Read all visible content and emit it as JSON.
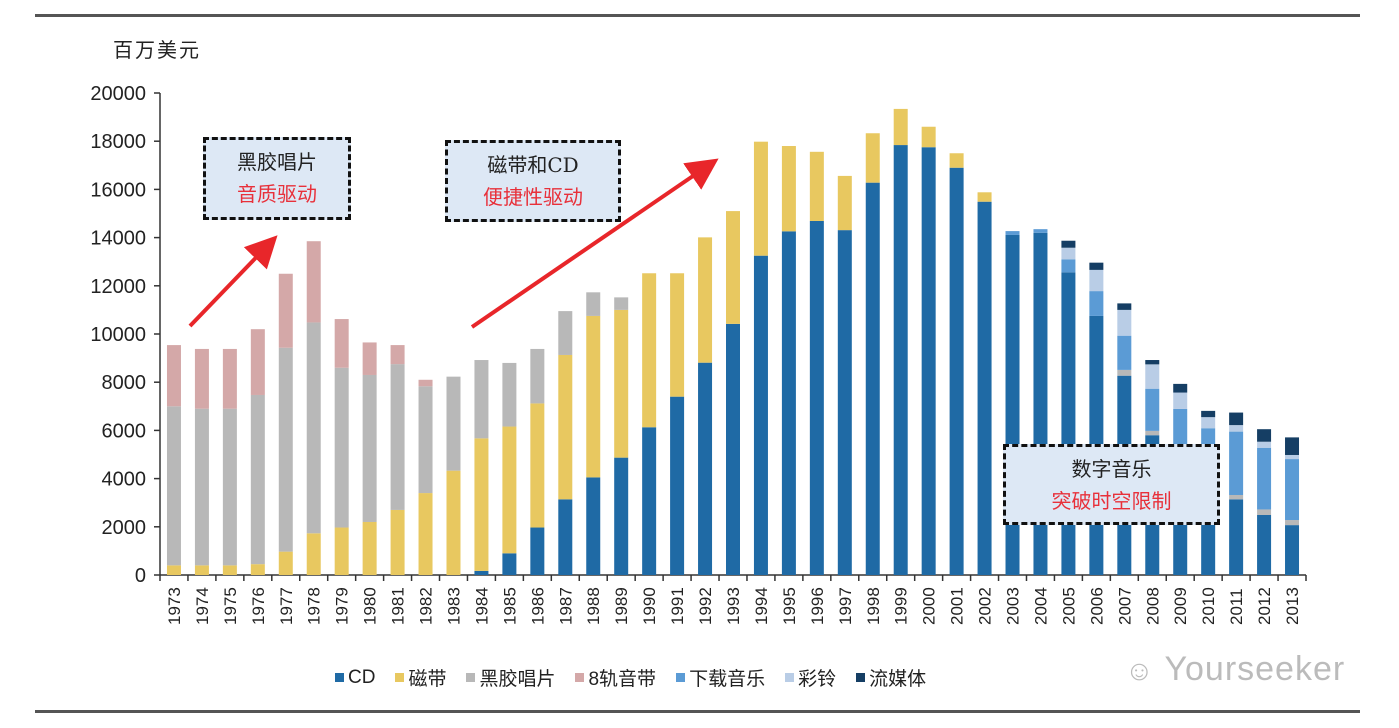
{
  "chart_data": {
    "type": "bar",
    "stacked": true,
    "ylabel": "百万美元",
    "ylim": [
      0,
      20000
    ],
    "yticks": [
      0,
      2000,
      4000,
      6000,
      8000,
      10000,
      12000,
      14000,
      16000,
      18000,
      20000
    ],
    "grid": false,
    "legend_position": "bottom",
    "categories": [
      "1973",
      "1974",
      "1975",
      "1976",
      "1977",
      "1978",
      "1979",
      "1980",
      "1981",
      "1982",
      "1983",
      "1984",
      "1985",
      "1986",
      "1987",
      "1988",
      "1989",
      "1990",
      "1991",
      "1992",
      "1993",
      "1994",
      "1995",
      "1996",
      "1997",
      "1998",
      "1999",
      "2000",
      "2001",
      "2002",
      "2003",
      "2004",
      "2005",
      "2006",
      "2007",
      "2008",
      "2009",
      "2010",
      "2011",
      "2012",
      "2013"
    ],
    "series": [
      {
        "name": "CD",
        "color": "#1f6aa5",
        "values": [
          0,
          0,
          0,
          0,
          0,
          0,
          0,
          0,
          0,
          0,
          0,
          170,
          900,
          1970,
          3140,
          4050,
          4870,
          6130,
          7400,
          8810,
          10420,
          13250,
          14260,
          14690,
          14310,
          16280,
          17840,
          17750,
          16900,
          15490,
          14110,
          14200,
          12560,
          10750,
          8270,
          5800,
          4270,
          3390,
          3140,
          2490,
          2070
        ]
      },
      {
        "name": "磁带",
        "color": "#e8c860",
        "values": [
          400,
          400,
          400,
          450,
          970,
          1730,
          1970,
          2200,
          2700,
          3400,
          4330,
          5500,
          5260,
          5150,
          5990,
          6700,
          6130,
          6390,
          5120,
          5200,
          4680,
          4730,
          3540,
          2870,
          2250,
          2050,
          1500,
          850,
          600,
          390,
          0,
          0,
          0,
          0,
          0,
          0,
          0,
          0,
          0,
          0,
          0
        ]
      },
      {
        "name": "黑胶唱片",
        "color": "#b8b8b8",
        "values": [
          6600,
          6500,
          6500,
          7020,
          8460,
          8750,
          6630,
          6100,
          6050,
          4430,
          3900,
          3250,
          2640,
          2260,
          1820,
          980,
          520,
          0,
          0,
          0,
          0,
          0,
          0,
          0,
          0,
          0,
          0,
          0,
          0,
          0,
          0,
          0,
          0,
          0,
          240,
          180,
          100,
          100,
          180,
          230,
          210
        ]
      },
      {
        "name": "8轨音带",
        "color": "#d4a8a8",
        "values": [
          2540,
          2480,
          2480,
          2730,
          3070,
          3370,
          2020,
          1350,
          790,
          270,
          0,
          0,
          0,
          0,
          0,
          0,
          0,
          0,
          0,
          0,
          0,
          0,
          0,
          0,
          0,
          0,
          0,
          0,
          0,
          0,
          0,
          0,
          0,
          0,
          0,
          0,
          0,
          0,
          0,
          0,
          0
        ]
      },
      {
        "name": "下载音乐",
        "color": "#5b9bd5",
        "values": [
          0,
          0,
          0,
          0,
          0,
          0,
          0,
          0,
          0,
          0,
          0,
          0,
          0,
          0,
          0,
          0,
          0,
          0,
          0,
          0,
          0,
          0,
          0,
          0,
          0,
          0,
          0,
          0,
          0,
          0,
          160,
          150,
          540,
          1030,
          1420,
          1750,
          2520,
          2600,
          2630,
          2560,
          2530
        ]
      },
      {
        "name": "彩铃",
        "color": "#b9cde6",
        "values": [
          0,
          0,
          0,
          0,
          0,
          0,
          0,
          0,
          0,
          0,
          0,
          0,
          0,
          0,
          0,
          0,
          0,
          0,
          0,
          0,
          0,
          0,
          0,
          0,
          0,
          0,
          0,
          0,
          0,
          0,
          0,
          0,
          480,
          880,
          1070,
          1010,
          680,
          460,
          270,
          250,
          170
        ]
      },
      {
        "name": "流媒体",
        "color": "#153e64",
        "values": [
          0,
          0,
          0,
          0,
          0,
          0,
          0,
          0,
          0,
          0,
          0,
          0,
          0,
          0,
          0,
          0,
          0,
          0,
          0,
          0,
          0,
          0,
          0,
          0,
          0,
          0,
          0,
          0,
          0,
          0,
          0,
          0,
          290,
          300,
          270,
          180,
          360,
          260,
          520,
          520,
          730
        ]
      }
    ],
    "annotations": [
      {
        "line1": "黑胶唱片",
        "line2": "音质驱动"
      },
      {
        "line1": "磁带和CD",
        "line2": "便捷性驱动"
      },
      {
        "line1": "数字音乐",
        "line2": "突破时空限制"
      }
    ],
    "annotation_color": "#e8303a"
  },
  "watermark": "Yourseeker"
}
